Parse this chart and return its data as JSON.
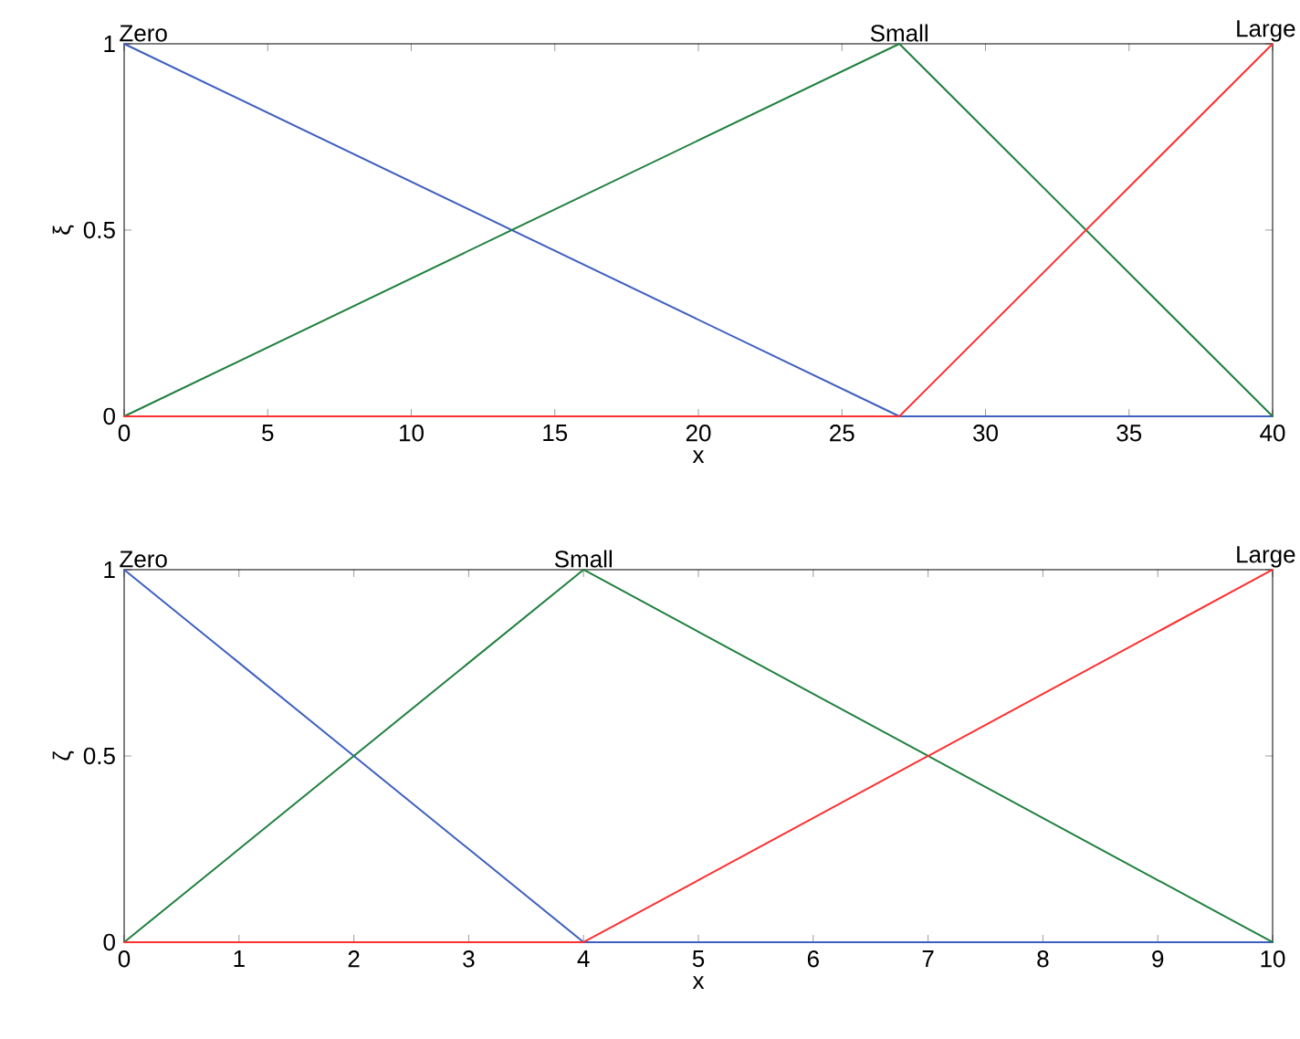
{
  "chart_data": [
    {
      "type": "line",
      "xlabel": "x",
      "ylabel": "ξ",
      "xlim": [
        0,
        40
      ],
      "ylim": [
        0,
        1
      ],
      "xticks": [
        0,
        5,
        10,
        15,
        20,
        25,
        30,
        35,
        40
      ],
      "yticks": [
        0,
        0.5,
        1
      ],
      "grid": false,
      "legend": false,
      "series": [
        {
          "name": "Zero",
          "color": "#3f5fbf",
          "x": [
            0,
            27,
            40
          ],
          "values": [
            1,
            0,
            0
          ]
        },
        {
          "name": "Small",
          "color": "#20803f",
          "x": [
            0,
            27,
            40
          ],
          "values": [
            0,
            1,
            0
          ]
        },
        {
          "name": "Large",
          "color": "#ff3030",
          "x": [
            0,
            27,
            40
          ],
          "values": [
            0,
            0,
            1
          ]
        }
      ]
    },
    {
      "type": "line",
      "xlabel": "x",
      "ylabel": "ζ",
      "xlim": [
        0,
        10
      ],
      "ylim": [
        0,
        1
      ],
      "xticks": [
        0,
        1,
        2,
        3,
        4,
        5,
        6,
        7,
        8,
        9,
        10
      ],
      "yticks": [
        0,
        0.5,
        1
      ],
      "grid": false,
      "legend": false,
      "series": [
        {
          "name": "Zero",
          "color": "#3f5fbf",
          "x": [
            0,
            4,
            10
          ],
          "values": [
            1,
            0,
            0
          ]
        },
        {
          "name": "Small",
          "color": "#20803f",
          "x": [
            0,
            4,
            10
          ],
          "values": [
            0,
            1,
            0
          ]
        },
        {
          "name": "Large",
          "color": "#ff3030",
          "x": [
            0,
            4,
            10
          ],
          "values": [
            0,
            0,
            1
          ]
        }
      ]
    }
  ]
}
